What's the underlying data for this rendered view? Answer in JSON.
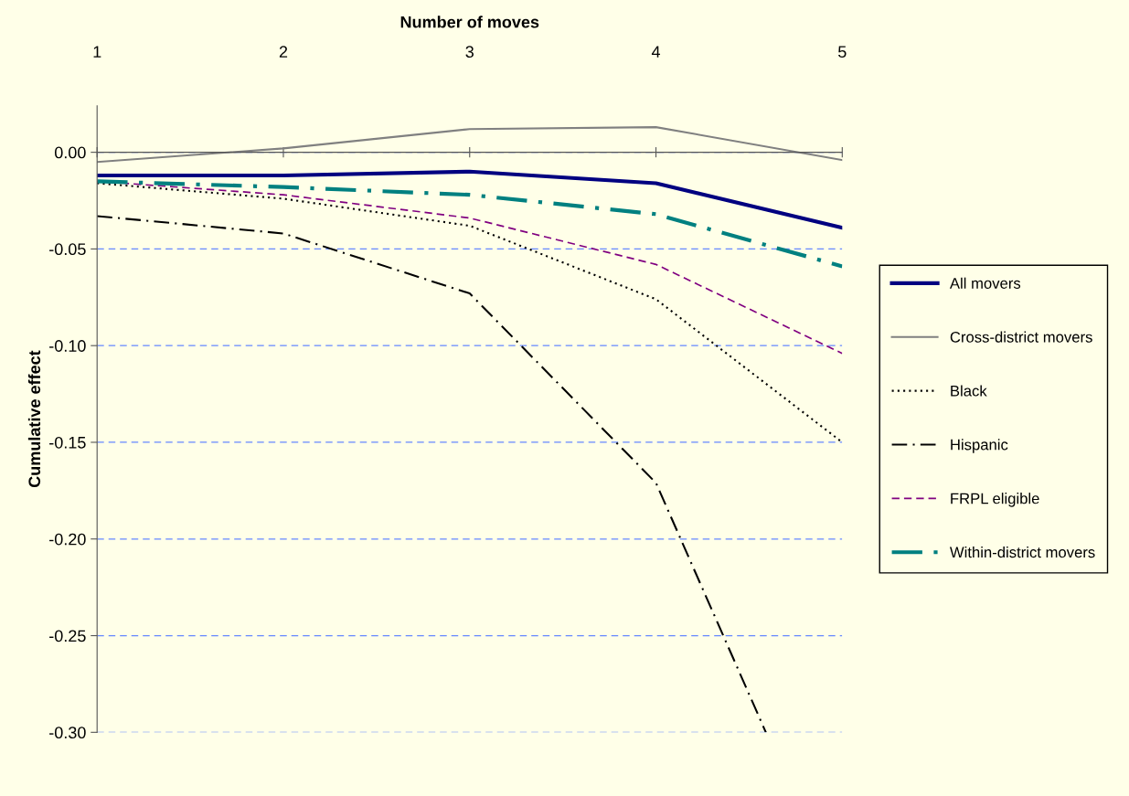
{
  "chart_data": {
    "type": "line",
    "xlabel": "Number of moves",
    "ylabel": "Cumulative effect",
    "x": [
      1,
      2,
      3,
      4,
      5
    ],
    "xlim": [
      1,
      5
    ],
    "xticks": [
      1,
      2,
      3,
      4,
      5
    ],
    "ylim": [
      -0.3,
      0.024
    ],
    "yticks": [
      {
        "value": 0,
        "label": "0.00"
      },
      {
        "value": -0.05,
        "label": "-0.05"
      },
      {
        "value": -0.1,
        "label": "-0.10"
      },
      {
        "value": -0.15,
        "label": "-0.15"
      },
      {
        "value": -0.2,
        "label": "-0.20"
      },
      {
        "value": -0.25,
        "label": "-0.25"
      },
      {
        "value": -0.3,
        "label": "-0.30"
      }
    ],
    "grid": "y",
    "legend": "right",
    "marker": "none",
    "series": [
      {
        "name": "All movers",
        "color": "#000080",
        "line_style": "solid",
        "values": [
          -0.012,
          -0.012,
          -0.01,
          -0.016,
          -0.039
        ]
      },
      {
        "name": "Cross-district movers",
        "color": "#808080",
        "line_style": "solid",
        "values": [
          -0.005,
          0.002,
          0.012,
          0.013,
          -0.004
        ]
      },
      {
        "name": "Black",
        "color": "#000000",
        "line_style": "dotted",
        "values": [
          -0.016,
          -0.024,
          -0.038,
          -0.076,
          -0.15
        ]
      },
      {
        "name": "Hispanic",
        "color": "#000000",
        "line_style": "dashdot",
        "x": [
          1,
          2,
          3,
          4,
          4.59
        ],
        "values": [
          -0.033,
          -0.042,
          -0.073,
          -0.171,
          -0.3
        ]
      },
      {
        "name": "FRPL eligible",
        "color": "#800080",
        "line_style": "dashed",
        "values": [
          -0.015,
          -0.022,
          -0.034,
          -0.058,
          -0.104
        ]
      },
      {
        "name": "Within-district movers",
        "color": "#008080",
        "line_style": "dashdot",
        "values": [
          -0.015,
          -0.018,
          -0.022,
          -0.032,
          -0.059
        ]
      }
    ]
  }
}
